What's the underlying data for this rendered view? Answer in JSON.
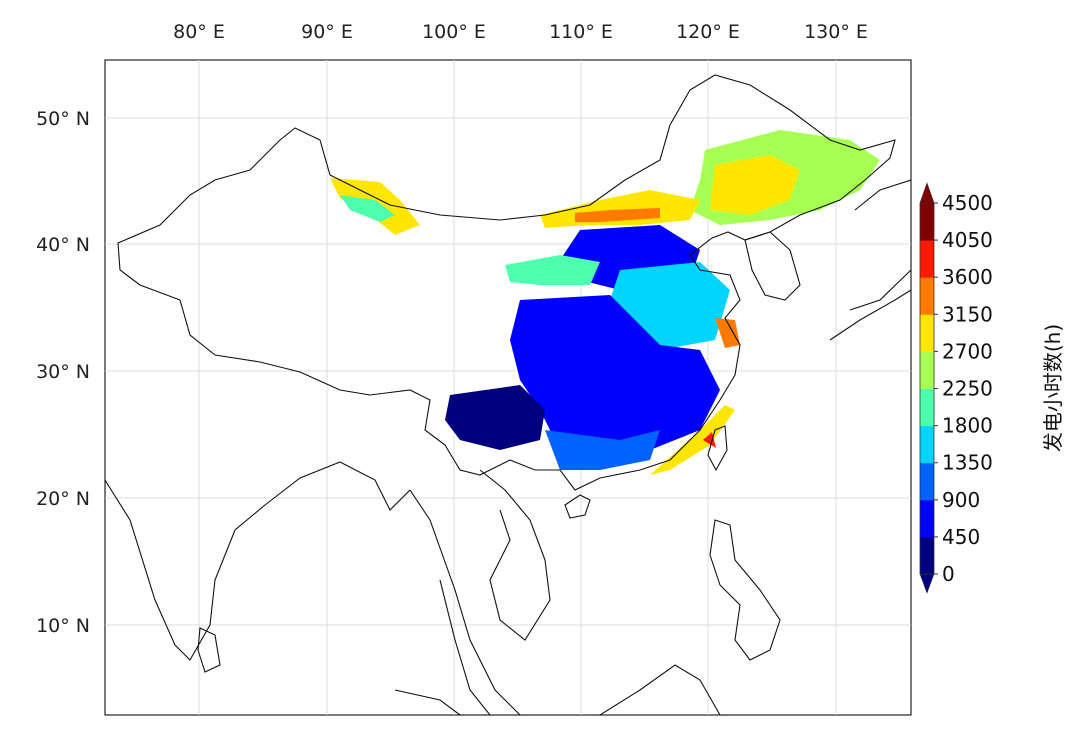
{
  "map": {
    "lon_ticks": [
      "80° E",
      "90° E",
      "100° E",
      "110° E",
      "120° E",
      "130° E"
    ],
    "lat_ticks": [
      "50° N",
      "40° N",
      "30° N",
      "20° N",
      "10° N"
    ],
    "gridlines": true
  },
  "colorbar": {
    "title": "发电小时数(h)",
    "labels": [
      "0",
      "450",
      "900",
      "1350",
      "1800",
      "2250",
      "2700",
      "3150",
      "3600",
      "4050",
      "4500"
    ],
    "colors": [
      "#00007f",
      "#0000ff",
      "#0062ff",
      "#00d4ff",
      "#4dffad",
      "#a6ff52",
      "#ffe600",
      "#ff7b00",
      "#ff1a00",
      "#7f0000"
    ],
    "extend": "both"
  },
  "layers": {
    "coastlines": "black outline",
    "china_boundary": "black outline",
    "data_field": "gridded power generation hours"
  }
}
